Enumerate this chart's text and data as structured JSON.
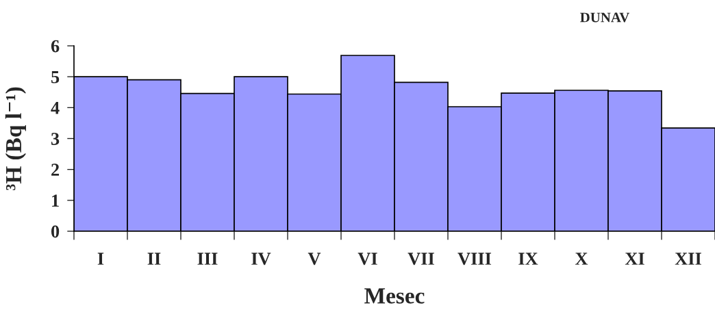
{
  "chart_data": {
    "type": "bar",
    "title": "DUNAV",
    "xlabel": "Mesec",
    "ylabel": "³H (Bq l⁻¹)",
    "categories": [
      "I",
      "II",
      "III",
      "IV",
      "V",
      "VI",
      "VII",
      "VIII",
      "IX",
      "X",
      "XI",
      "XII"
    ],
    "values": [
      5.0,
      4.9,
      4.46,
      5.0,
      4.44,
      5.69,
      4.82,
      4.03,
      4.47,
      4.56,
      4.54,
      3.34
    ],
    "color": "#9999ff",
    "ylim": [
      0,
      6
    ],
    "yticks": [
      0,
      1,
      2,
      3,
      4,
      5,
      6
    ]
  }
}
